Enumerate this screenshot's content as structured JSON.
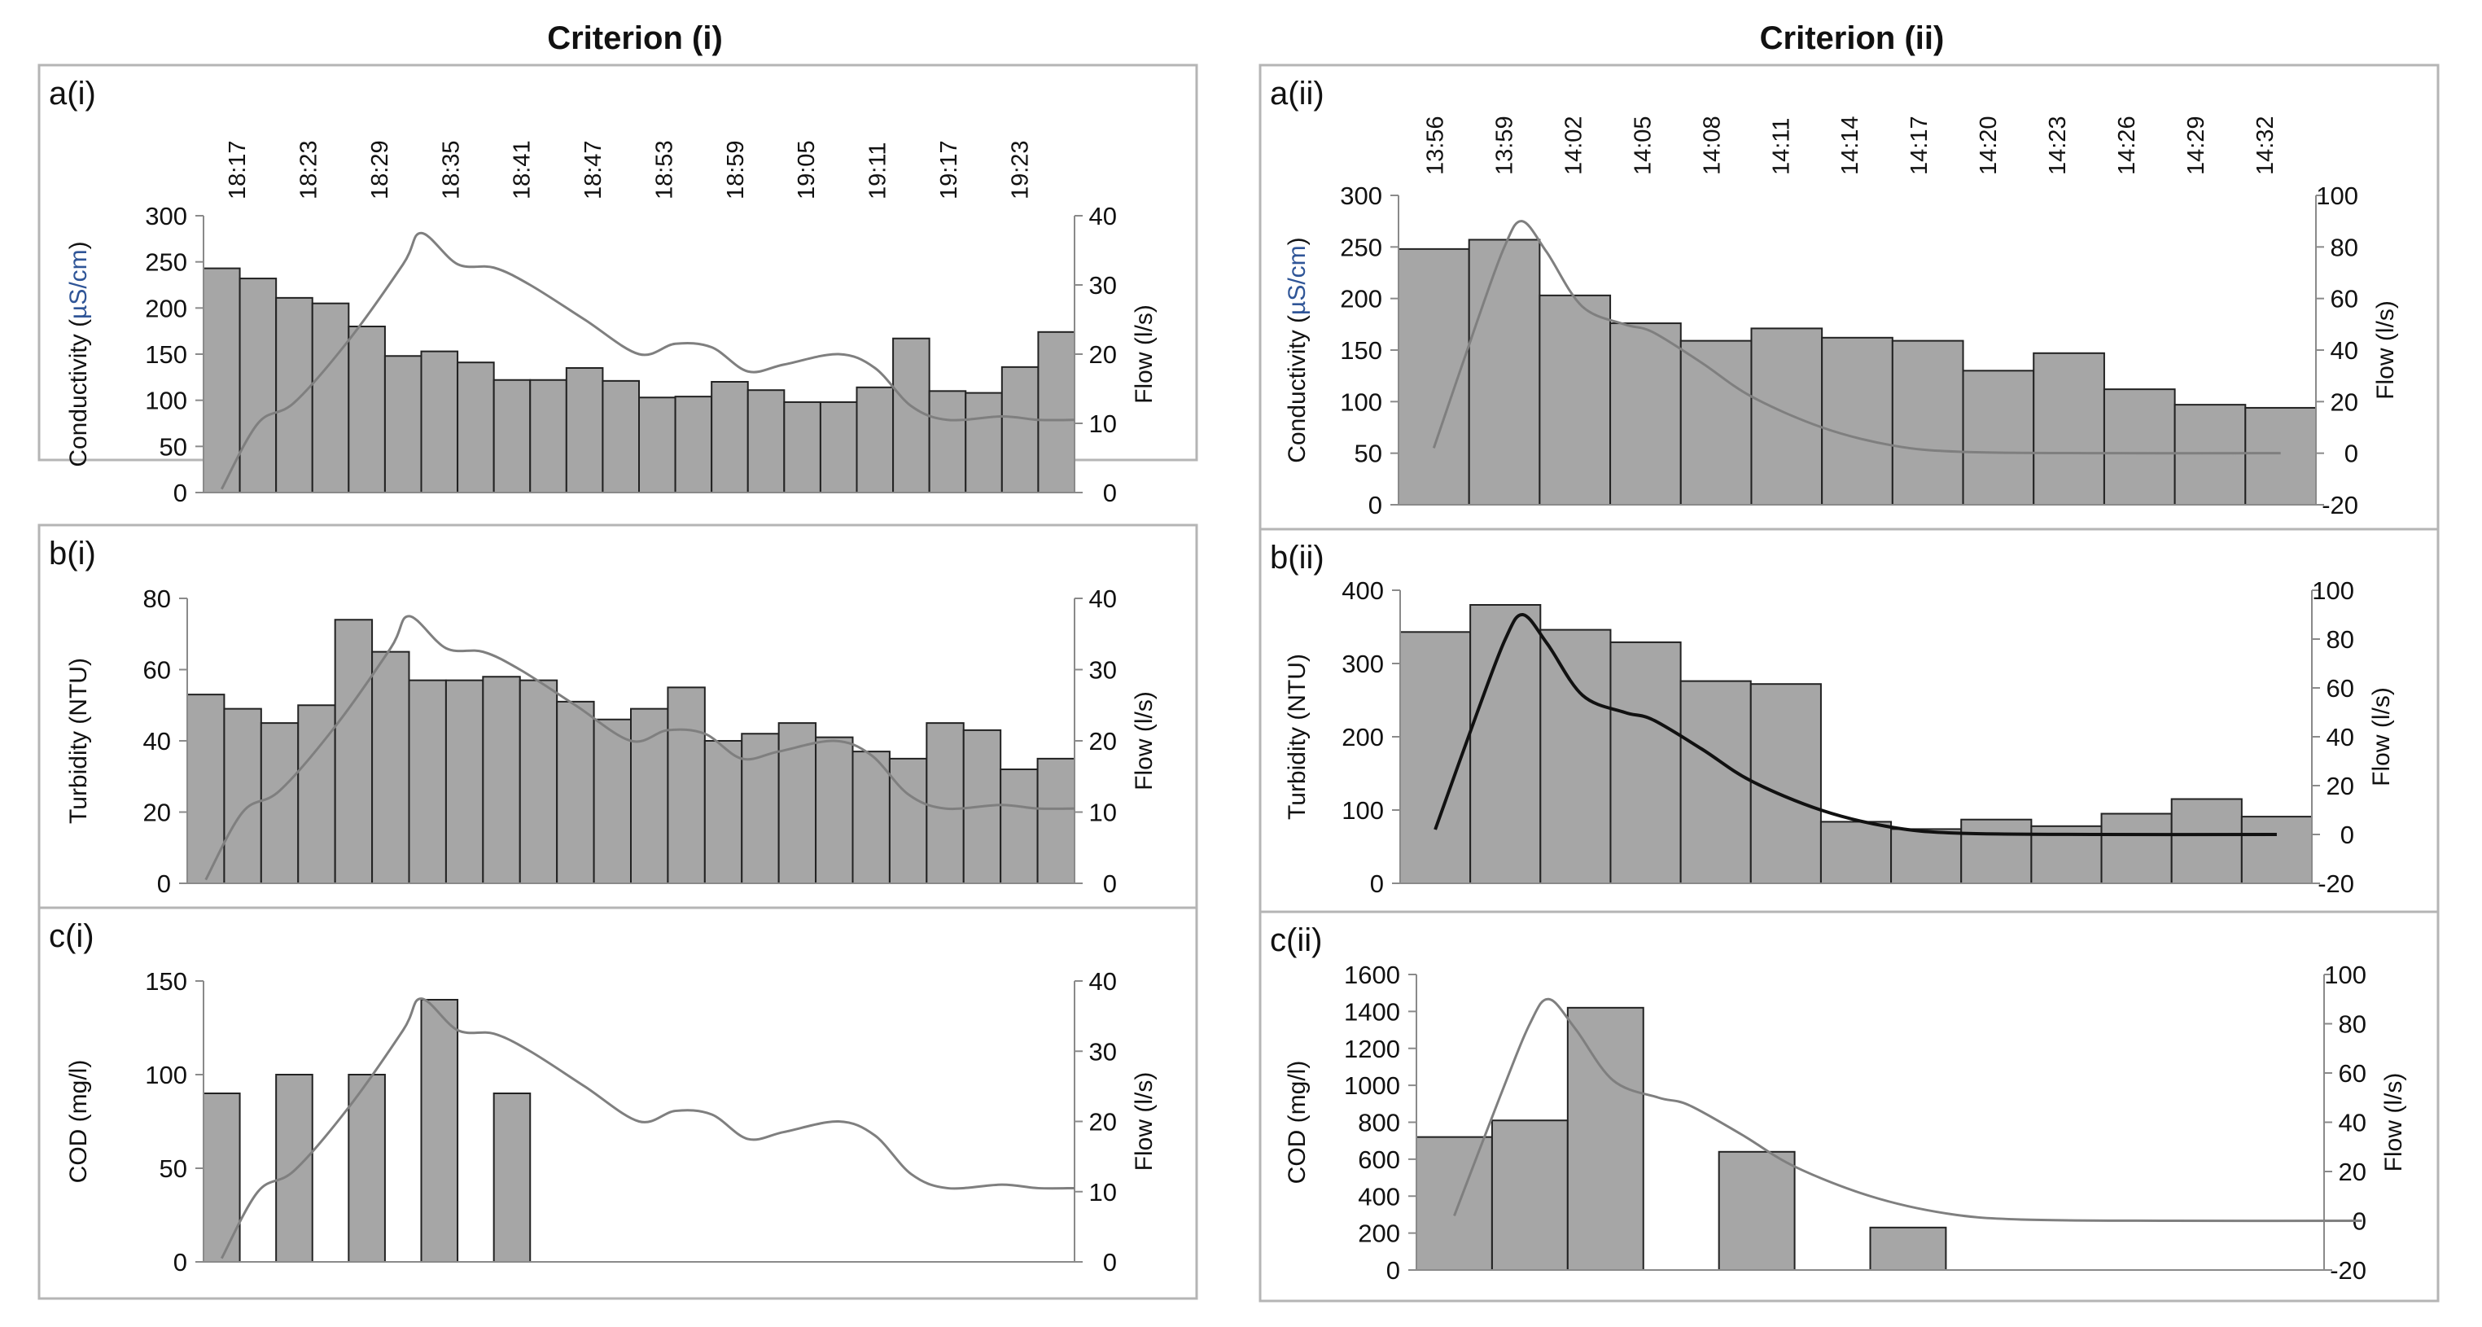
{
  "column_titles": [
    "Criterion (i)",
    "Criterion (ii)"
  ],
  "chart_data": [
    {
      "id": "a_i",
      "type": "bar",
      "label": "a(i)",
      "ylabel_parts": [
        "Conductivity (",
        "µS/cm",
        ")"
      ],
      "y2label": "Flow (l/s)",
      "ylim": [
        0,
        300
      ],
      "yticks": [
        0,
        50,
        100,
        150,
        200,
        250,
        300
      ],
      "y2lim": [
        0,
        40
      ],
      "y2ticks": [
        0,
        10,
        20,
        30,
        40
      ],
      "time_labels": [
        "18:17",
        "18:23",
        "18:29",
        "18:35",
        "18:41",
        "18:47",
        "18:53",
        "18:59",
        "19:05",
        "19:11",
        "19:17",
        "19:23"
      ],
      "bar_slots": 24,
      "bars": [
        243,
        232,
        211,
        205,
        180,
        148,
        153,
        141,
        122,
        122,
        135,
        121,
        103,
        104,
        120,
        111,
        98,
        98,
        114,
        167,
        110,
        108,
        136,
        174
      ],
      "flow": [
        [
          0.5,
          0.5
        ],
        [
          1.5,
          10
        ],
        [
          2.5,
          13
        ],
        [
          4,
          22
        ],
        [
          5.5,
          33
        ],
        [
          6,
          37.5
        ],
        [
          7,
          33
        ],
        [
          8,
          32.5
        ],
        [
          9,
          30
        ],
        [
          10.5,
          25
        ],
        [
          12,
          20
        ],
        [
          13,
          21.5
        ],
        [
          14,
          21
        ],
        [
          15,
          17.5
        ],
        [
          16,
          18.5
        ],
        [
          17.5,
          20
        ],
        [
          18.5,
          18
        ],
        [
          19.5,
          12.5
        ],
        [
          20.5,
          10.5
        ],
        [
          22,
          11
        ],
        [
          23,
          10.5
        ],
        [
          24,
          10.5
        ]
      ],
      "flow_dark": false
    },
    {
      "id": "b_i",
      "type": "bar",
      "label": "b(i)",
      "ylabel_parts": [
        "Turbidity (NTU)"
      ],
      "y2label": "Flow (l/s)",
      "ylim": [
        0,
        80
      ],
      "yticks": [
        0,
        20,
        40,
        60,
        80
      ],
      "y2lim": [
        0,
        40
      ],
      "y2ticks": [
        0,
        10,
        20,
        30,
        40
      ],
      "time_labels": [],
      "bar_slots": 24,
      "bars": [
        53,
        49,
        45,
        50,
        74,
        65,
        57,
        57,
        58,
        57,
        51,
        46,
        49,
        55,
        40,
        42,
        45,
        41,
        37,
        35,
        45,
        43,
        32,
        35
      ],
      "flow": [
        [
          0.5,
          0.5
        ],
        [
          1.5,
          10
        ],
        [
          2.5,
          13
        ],
        [
          4,
          22
        ],
        [
          5.5,
          33
        ],
        [
          6,
          37.5
        ],
        [
          7,
          33
        ],
        [
          8,
          32.5
        ],
        [
          9,
          30
        ],
        [
          10.5,
          25
        ],
        [
          12,
          20
        ],
        [
          13,
          21.5
        ],
        [
          14,
          21
        ],
        [
          15,
          17.5
        ],
        [
          16,
          18.5
        ],
        [
          17.5,
          20
        ],
        [
          18.5,
          18
        ],
        [
          19.5,
          12.5
        ],
        [
          20.5,
          10.5
        ],
        [
          22,
          11
        ],
        [
          23,
          10.5
        ],
        [
          24,
          10.5
        ]
      ],
      "flow_dark": false
    },
    {
      "id": "c_i",
      "type": "bar",
      "label": "c(i)",
      "ylabel_parts": [
        "COD (mg/l)"
      ],
      "y2label": "Flow (l/s)",
      "ylim": [
        0,
        150
      ],
      "yticks": [
        0,
        50,
        100,
        150
      ],
      "y2lim": [
        0,
        40
      ],
      "y2ticks": [
        0,
        10,
        20,
        30,
        40
      ],
      "time_labels": [],
      "bar_slots": 24,
      "bars": [
        90,
        null,
        100,
        null,
        100,
        null,
        140,
        null,
        90,
        null,
        null,
        null,
        null,
        null,
        null,
        null,
        null,
        null,
        null,
        null,
        null,
        null,
        null,
        null
      ],
      "flow": [
        [
          0.5,
          0.5
        ],
        [
          1.5,
          10
        ],
        [
          2.5,
          13
        ],
        [
          4,
          22
        ],
        [
          5.5,
          33
        ],
        [
          6,
          37.5
        ],
        [
          7,
          33
        ],
        [
          8,
          32.5
        ],
        [
          9,
          30
        ],
        [
          10.5,
          25
        ],
        [
          12,
          20
        ],
        [
          13,
          21.5
        ],
        [
          14,
          21
        ],
        [
          15,
          17.5
        ],
        [
          16,
          18.5
        ],
        [
          17.5,
          20
        ],
        [
          18.5,
          18
        ],
        [
          19.5,
          12.5
        ],
        [
          20.5,
          10.5
        ],
        [
          22,
          11
        ],
        [
          23,
          10.5
        ],
        [
          24,
          10.5
        ]
      ],
      "flow_dark": false
    },
    {
      "id": "a_ii",
      "type": "bar",
      "label": "a(ii)",
      "ylabel_parts": [
        "Conductivity (",
        "µS/cm",
        ")"
      ],
      "y2label": "Flow (l/s)",
      "ylim": [
        0,
        300
      ],
      "yticks": [
        0,
        50,
        100,
        150,
        200,
        250,
        300
      ],
      "y2lim": [
        -20,
        100
      ],
      "y2ticks": [
        -20,
        0,
        20,
        40,
        60,
        80,
        100
      ],
      "time_labels": [
        "13:56",
        "13:59",
        "14:02",
        "14:05",
        "14:08",
        "14:11",
        "14:14",
        "14:17",
        "14:20",
        "14:23",
        "14:26",
        "14:29",
        "14:32"
      ],
      "bar_slots": 13,
      "bars": [
        248,
        257,
        203,
        176,
        159,
        171,
        162,
        159,
        130,
        147,
        112,
        97,
        94
      ],
      "flow": [
        [
          0.5,
          2
        ],
        [
          1.1,
          50
        ],
        [
          1.5,
          80
        ],
        [
          1.75,
          90
        ],
        [
          2.1,
          78
        ],
        [
          2.6,
          57
        ],
        [
          3.2,
          50
        ],
        [
          3.6,
          47
        ],
        [
          4.3,
          35
        ],
        [
          5,
          22
        ],
        [
          6,
          10
        ],
        [
          7,
          3
        ],
        [
          8,
          0.5
        ],
        [
          10,
          0
        ],
        [
          12.5,
          0
        ]
      ],
      "flow_dark": false
    },
    {
      "id": "b_ii",
      "type": "bar",
      "label": "b(ii)",
      "ylabel_parts": [
        "Turbidity (NTU)"
      ],
      "y2label": "Flow (l/s)",
      "ylim": [
        0,
        400
      ],
      "yticks": [
        0,
        100,
        200,
        300,
        400
      ],
      "y2lim": [
        -20,
        100
      ],
      "y2ticks": [
        -20,
        0,
        20,
        40,
        60,
        80,
        100
      ],
      "time_labels": [],
      "bar_slots": 13,
      "bars": [
        343,
        380,
        346,
        329,
        276,
        272,
        84,
        74,
        87,
        78,
        95,
        115,
        91
      ],
      "flow": [
        [
          0.5,
          2
        ],
        [
          1.1,
          50
        ],
        [
          1.5,
          80
        ],
        [
          1.75,
          90
        ],
        [
          2.1,
          78
        ],
        [
          2.6,
          57
        ],
        [
          3.2,
          50
        ],
        [
          3.6,
          47
        ],
        [
          4.3,
          35
        ],
        [
          5,
          22
        ],
        [
          6,
          10
        ],
        [
          7,
          3
        ],
        [
          8,
          0.5
        ],
        [
          10,
          0
        ],
        [
          12.5,
          0
        ]
      ],
      "flow_dark": true
    },
    {
      "id": "c_ii",
      "type": "bar",
      "label": "c(ii)",
      "ylabel_parts": [
        "COD (mg/l)"
      ],
      "y2label": "Flow (l/s)",
      "ylim": [
        0,
        1600
      ],
      "yticks": [
        0,
        200,
        400,
        600,
        800,
        1000,
        1200,
        1400,
        1600
      ],
      "y2lim": [
        -20,
        100
      ],
      "y2ticks": [
        -20,
        0,
        20,
        40,
        60,
        80,
        100
      ],
      "time_labels": [],
      "bar_slots": 12,
      "bars": [
        720,
        810,
        1420,
        null,
        640,
        null,
        230,
        null,
        null,
        null,
        null,
        null
      ],
      "flow": [
        [
          0.5,
          2
        ],
        [
          1.1,
          50
        ],
        [
          1.5,
          80
        ],
        [
          1.75,
          90
        ],
        [
          2.1,
          78
        ],
        [
          2.6,
          57
        ],
        [
          3.2,
          50
        ],
        [
          3.6,
          47
        ],
        [
          4.3,
          35
        ],
        [
          5,
          22
        ],
        [
          6,
          10
        ],
        [
          7,
          3
        ],
        [
          8,
          0.5
        ],
        [
          10,
          0
        ],
        [
          12.5,
          0
        ]
      ],
      "flow_dark": false
    }
  ]
}
